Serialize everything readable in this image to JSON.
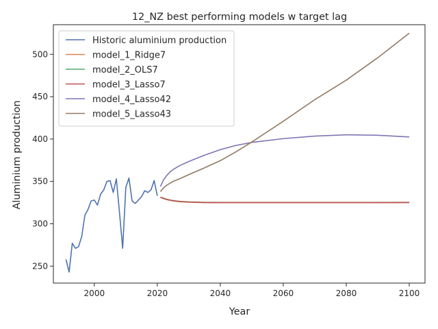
{
  "chart_data": {
    "type": "line",
    "title": "12_NZ best performing models w target lag",
    "xlabel": "Year",
    "ylabel": "Aluminium production",
    "xlim": [
      1987,
      2105
    ],
    "ylim": [
      230,
      535
    ],
    "xticks": [
      2000,
      2020,
      2040,
      2060,
      2080,
      2100
    ],
    "yticks": [
      250,
      300,
      350,
      400,
      450,
      500
    ],
    "grid": false,
    "legend_position": "top-left",
    "series": [
      {
        "name": "Historic aluminium production",
        "color": "#4c72b0",
        "x": [
          1991,
          1992,
          1993,
          1994,
          1995,
          1996,
          1997,
          1998,
          1999,
          2000,
          2001,
          2002,
          2003,
          2004,
          2005,
          2006,
          2007,
          2008,
          2009,
          2010,
          2011,
          2012,
          2013,
          2014,
          2015,
          2016,
          2017,
          2018,
          2019,
          2020
        ],
        "y": [
          258,
          243,
          277,
          271,
          273,
          285,
          310,
          317,
          327,
          328,
          322,
          335,
          340,
          350,
          351,
          337,
          353,
          313,
          271,
          343,
          354,
          327,
          324,
          328,
          332,
          339,
          337,
          340,
          351,
          333
        ]
      },
      {
        "name": "model_1_Ridge7",
        "color": "#dd8452",
        "x": [
          2021,
          2023,
          2025,
          2027,
          2030,
          2035,
          2040,
          2050,
          2060,
          2070,
          2080,
          2090,
          2100
        ],
        "y": [
          331.5,
          329,
          327.5,
          326.5,
          325.8,
          325.3,
          325.2,
          325.2,
          325.2,
          325.2,
          325.2,
          325.2,
          325.3
        ]
      },
      {
        "name": "model_2_OLS7",
        "color": "#55a868",
        "x": [
          2021,
          2023,
          2025,
          2027,
          2030,
          2035,
          2040,
          2050,
          2060,
          2070,
          2080,
          2090,
          2100
        ],
        "y": [
          331.3,
          328.8,
          327.3,
          326.4,
          325.7,
          325.2,
          325.1,
          325.1,
          325.1,
          325.1,
          325.1,
          325.1,
          325.2
        ]
      },
      {
        "name": "model_3_Lasso7",
        "color": "#c44e52",
        "x": [
          2021,
          2023,
          2025,
          2027,
          2030,
          2035,
          2040,
          2050,
          2060,
          2070,
          2080,
          2090,
          2100
        ],
        "y": [
          331.0,
          328.5,
          327.0,
          326.1,
          325.5,
          325.0,
          325.0,
          325.0,
          325.0,
          325.0,
          325.0,
          325.0,
          325.0
        ]
      },
      {
        "name": "model_4_Lasso42",
        "color": "#8172b3",
        "x": [
          2021,
          2022,
          2023,
          2024,
          2025,
          2027,
          2030,
          2035,
          2040,
          2045,
          2050,
          2060,
          2070,
          2080,
          2090,
          2100
        ],
        "y": [
          344,
          352,
          357,
          361,
          364,
          368.5,
          373.5,
          381,
          387.5,
          392.5,
          396,
          400.5,
          403.5,
          405,
          404.5,
          402.5
        ]
      },
      {
        "name": "model_5_Lasso43",
        "color": "#937860",
        "x": [
          2021,
          2022,
          2023,
          2025,
          2027,
          2030,
          2035,
          2040,
          2045,
          2050,
          2060,
          2070,
          2080,
          2090,
          2100
        ],
        "y": [
          338,
          342.5,
          345.5,
          350,
          353,
          358,
          366,
          374.5,
          385,
          396.5,
          421,
          446.5,
          469.5,
          496,
          525
        ]
      }
    ]
  }
}
